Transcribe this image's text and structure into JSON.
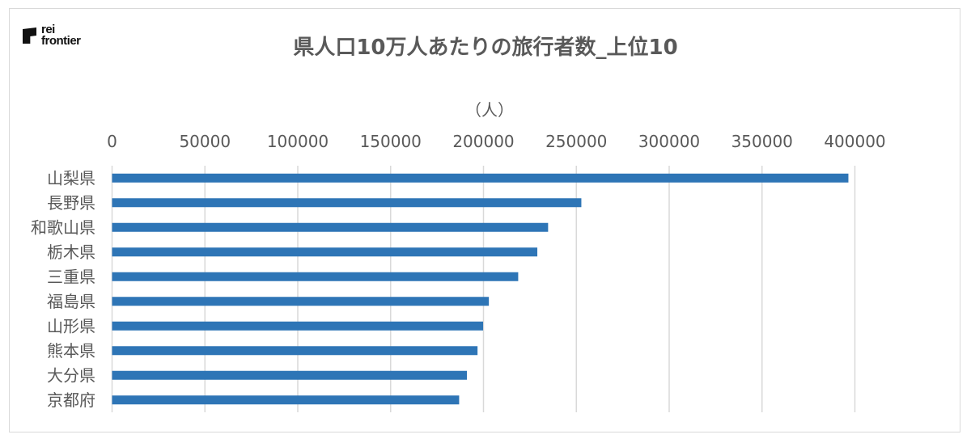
{
  "logo": {
    "line1": "rei",
    "line2": "frontier"
  },
  "chart_data": {
    "type": "bar",
    "orientation": "horizontal",
    "title": "県人口10万人あたりの旅行者数_上位10",
    "unit_label": "（人）",
    "categories": [
      "山梨県",
      "長野県",
      "和歌山県",
      "栃木県",
      "三重県",
      "福島県",
      "山形県",
      "熊本県",
      "大分県",
      "京都府"
    ],
    "values": [
      396500,
      252700,
      234800,
      229000,
      218700,
      202900,
      199800,
      196800,
      191100,
      186900
    ],
    "xlim": [
      0,
      400000
    ],
    "xticks": [
      "0",
      "50000",
      "100000",
      "150000",
      "200000",
      "250000",
      "300000",
      "350000",
      "400000"
    ],
    "axis_position": "top",
    "grid": true,
    "bar_color": "#2e75b6",
    "grid_color": "#d9d9d9"
  }
}
